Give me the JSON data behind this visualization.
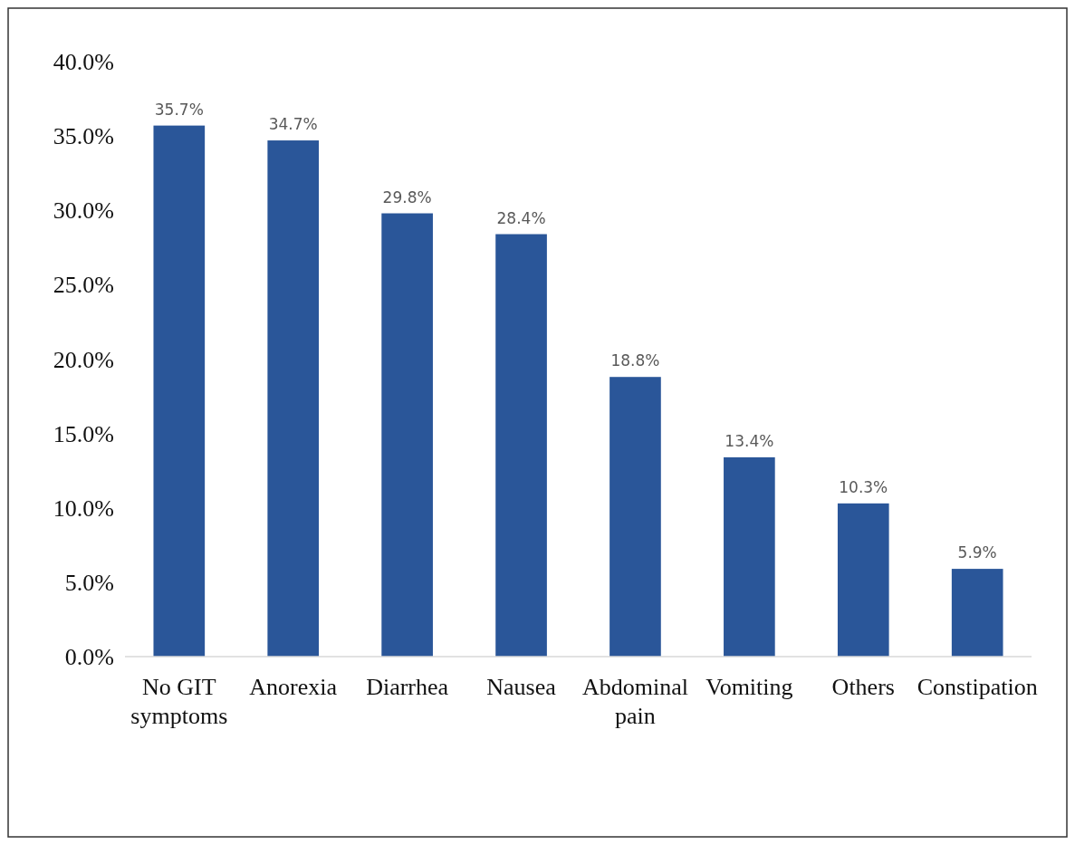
{
  "chart_data": {
    "type": "bar",
    "categories": [
      "No GIT symptoms",
      "Anorexia",
      "Diarrhea",
      "Nausea",
      "Abdominal pain",
      "Vomiting",
      "Others",
      "Constipation"
    ],
    "values": [
      35.7,
      34.7,
      29.8,
      28.4,
      18.8,
      13.4,
      10.3,
      5.9
    ],
    "color": "#2a5699",
    "ylim": [
      0,
      40
    ],
    "yticks": [
      {
        "value": 0,
        "label": "0.0%"
      },
      {
        "value": 5,
        "label": "5.0%"
      },
      {
        "value": 10,
        "label": "10.0%"
      },
      {
        "value": 15,
        "label": "15.0%"
      },
      {
        "value": 20,
        "label": "20.0%"
      },
      {
        "value": 25,
        "label": "25.0%"
      },
      {
        "value": 30,
        "label": "30.0%"
      },
      {
        "value": 35,
        "label": "35.0%"
      },
      {
        "value": 40,
        "label": "40.0%"
      }
    ],
    "value_labels": [
      "35.7%",
      "34.7%",
      "29.8%",
      "28.4%",
      "18.8%",
      "13.4%",
      "10.3%",
      "5.9%"
    ],
    "grid": false
  }
}
